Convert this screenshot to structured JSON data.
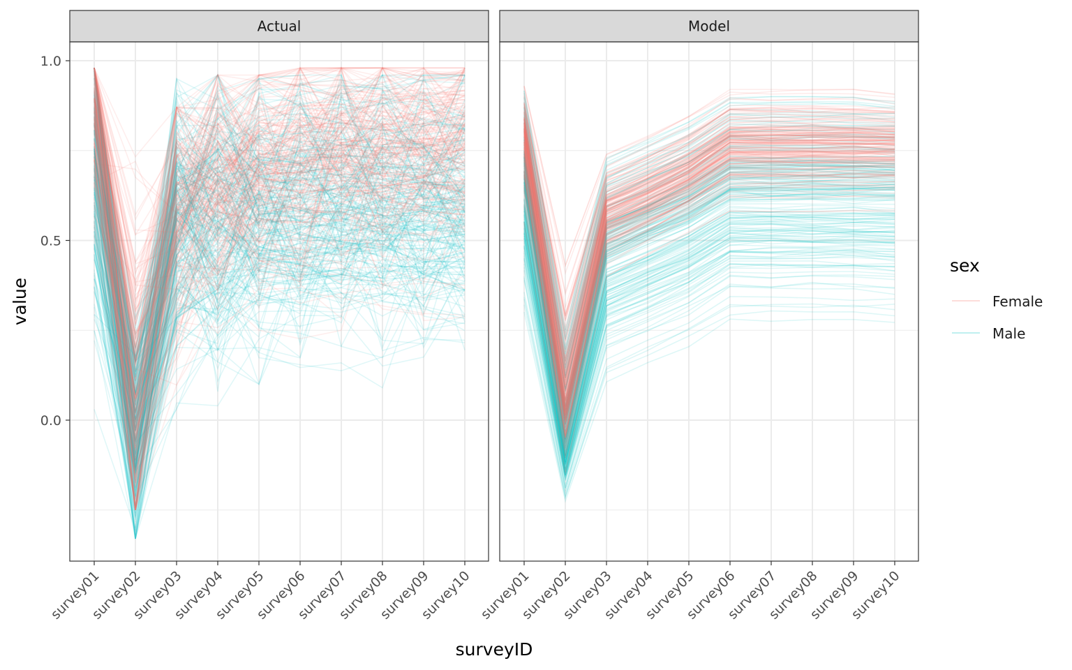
{
  "chart_data": {
    "type": "line",
    "facets": [
      "Actual",
      "Model"
    ],
    "categories": [
      "survey01",
      "survey02",
      "survey03",
      "survey04",
      "survey05",
      "survey06",
      "survey07",
      "survey08",
      "survey09",
      "survey10"
    ],
    "xlabel": "surveyID",
    "ylabel": "value",
    "ylim": [
      -0.4,
      1.05
    ],
    "yticks": [
      0.0,
      0.5,
      1.0
    ],
    "ytick_labels": [
      "0.0",
      "0.5",
      "1.0"
    ],
    "grid": true,
    "legend": {
      "title": "sex",
      "position": "right",
      "entries": [
        {
          "name": "Female",
          "color": "#F8766D"
        },
        {
          "name": "Male",
          "color": "#00BFC4"
        }
      ]
    },
    "series_summary": [
      {
        "facet": "Actual",
        "group": "Female",
        "color": "#F8766D",
        "mean": [
          0.88,
          0.05,
          0.58,
          0.62,
          0.66,
          0.76,
          0.76,
          0.76,
          0.76,
          0.76
        ],
        "min": [
          0.3,
          -0.25,
          0.05,
          0.15,
          0.25,
          0.13,
          0.25,
          0.25,
          0.25,
          0.25
        ],
        "max": [
          0.98,
          0.78,
          0.87,
          0.96,
          0.96,
          0.98,
          0.98,
          0.98,
          0.98,
          0.98
        ]
      },
      {
        "facet": "Actual",
        "group": "Male",
        "color": "#00BFC4",
        "mean": [
          0.7,
          -0.05,
          0.55,
          0.56,
          0.56,
          0.6,
          0.58,
          0.58,
          0.58,
          0.58
        ],
        "min": [
          0.03,
          -0.33,
          0.03,
          0.04,
          0.1,
          0.12,
          0.1,
          0.09,
          0.1,
          0.1
        ],
        "max": [
          0.98,
          0.4,
          0.95,
          0.96,
          0.95,
          0.96,
          0.96,
          0.96,
          0.96,
          0.96
        ]
      },
      {
        "facet": "Model",
        "group": "Female",
        "color": "#F8766D",
        "mean": [
          0.8,
          0.05,
          0.58,
          0.63,
          0.69,
          0.77,
          0.77,
          0.77,
          0.77,
          0.77
        ],
        "min": [
          0.55,
          -0.15,
          0.4,
          0.46,
          0.52,
          0.58,
          0.58,
          0.58,
          0.58,
          0.58
        ],
        "max": [
          0.93,
          0.43,
          0.74,
          0.79,
          0.85,
          0.92,
          0.92,
          0.92,
          0.92,
          0.91
        ]
      },
      {
        "facet": "Model",
        "group": "Male",
        "color": "#00BFC4",
        "mean": [
          0.65,
          -0.08,
          0.45,
          0.5,
          0.55,
          0.62,
          0.62,
          0.62,
          0.62,
          0.62
        ],
        "min": [
          0.28,
          -0.24,
          0.09,
          0.14,
          0.19,
          0.26,
          0.26,
          0.26,
          0.26,
          0.25
        ],
        "max": [
          0.92,
          0.25,
          0.73,
          0.78,
          0.83,
          0.9,
          0.9,
          0.9,
          0.9,
          0.89
        ]
      }
    ]
  }
}
